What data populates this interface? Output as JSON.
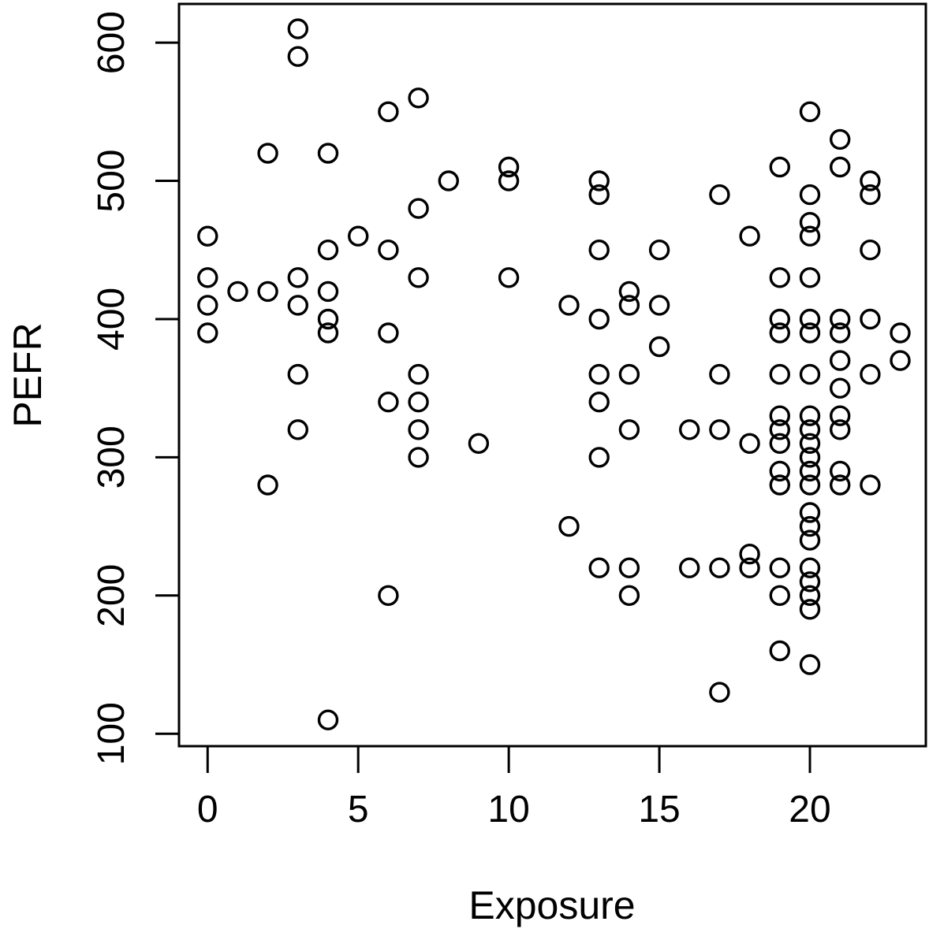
{
  "chart_data": {
    "type": "scatter",
    "title": "",
    "xlabel": "Exposure",
    "ylabel": "PEFR",
    "x_ticks": [
      0,
      5,
      10,
      15,
      20
    ],
    "y_ticks": [
      100,
      200,
      300,
      400,
      500,
      600
    ],
    "xlim": [
      -0.95,
      23.85
    ],
    "ylim": [
      91,
      628
    ],
    "grid": false,
    "legend": null,
    "marker": {
      "shape": "open-circle",
      "color": "#000000",
      "radius_px": 11.5,
      "stroke_px": 3.4
    },
    "axis_color": "#000000",
    "background_color": "#ffffff",
    "points": [
      [
        0,
        460
      ],
      [
        0,
        430
      ],
      [
        0,
        410
      ],
      [
        0,
        390
      ],
      [
        1,
        420
      ],
      [
        2,
        520
      ],
      [
        2,
        420
      ],
      [
        2,
        280
      ],
      [
        3,
        610
      ],
      [
        3,
        590
      ],
      [
        3,
        430
      ],
      [
        3,
        410
      ],
      [
        3,
        360
      ],
      [
        3,
        320
      ],
      [
        4,
        520
      ],
      [
        4,
        450
      ],
      [
        4,
        420
      ],
      [
        4,
        400
      ],
      [
        4,
        390
      ],
      [
        4,
        110
      ],
      [
        5,
        460
      ],
      [
        6,
        550
      ],
      [
        6,
        450
      ],
      [
        6,
        390
      ],
      [
        6,
        340
      ],
      [
        6,
        200
      ],
      [
        7,
        560
      ],
      [
        7,
        480
      ],
      [
        7,
        430
      ],
      [
        7,
        360
      ],
      [
        7,
        340
      ],
      [
        7,
        320
      ],
      [
        7,
        300
      ],
      [
        8,
        500
      ],
      [
        9,
        310
      ],
      [
        10,
        510
      ],
      [
        10,
        500
      ],
      [
        10,
        430
      ],
      [
        12,
        410
      ],
      [
        12,
        250
      ],
      [
        13,
        500
      ],
      [
        13,
        490
      ],
      [
        13,
        450
      ],
      [
        13,
        400
      ],
      [
        13,
        360
      ],
      [
        13,
        340
      ],
      [
        13,
        300
      ],
      [
        13,
        220
      ],
      [
        14,
        420
      ],
      [
        14,
        410
      ],
      [
        14,
        360
      ],
      [
        14,
        320
      ],
      [
        14,
        220
      ],
      [
        14,
        200
      ],
      [
        15,
        450
      ],
      [
        15,
        410
      ],
      [
        15,
        380
      ],
      [
        16,
        320
      ],
      [
        16,
        220
      ],
      [
        17,
        490
      ],
      [
        17,
        360
      ],
      [
        17,
        320
      ],
      [
        17,
        220
      ],
      [
        17,
        130
      ],
      [
        18,
        460
      ],
      [
        18,
        310
      ],
      [
        18,
        230
      ],
      [
        18,
        220
      ],
      [
        19,
        510
      ],
      [
        19,
        430
      ],
      [
        19,
        400
      ],
      [
        19,
        390
      ],
      [
        19,
        360
      ],
      [
        19,
        330
      ],
      [
        19,
        320
      ],
      [
        19,
        310
      ],
      [
        19,
        290
      ],
      [
        19,
        280
      ],
      [
        19,
        220
      ],
      [
        19,
        200
      ],
      [
        19,
        160
      ],
      [
        20,
        550
      ],
      [
        20,
        490
      ],
      [
        20,
        470
      ],
      [
        20,
        460
      ],
      [
        20,
        430
      ],
      [
        20,
        400
      ],
      [
        20,
        390
      ],
      [
        20,
        360
      ],
      [
        20,
        330
      ],
      [
        20,
        320
      ],
      [
        20,
        310
      ],
      [
        20,
        300
      ],
      [
        20,
        290
      ],
      [
        20,
        280
      ],
      [
        20,
        260
      ],
      [
        20,
        250
      ],
      [
        20,
        240
      ],
      [
        20,
        220
      ],
      [
        20,
        210
      ],
      [
        20,
        200
      ],
      [
        20,
        190
      ],
      [
        20,
        150
      ],
      [
        21,
        530
      ],
      [
        21,
        510
      ],
      [
        21,
        400
      ],
      [
        21,
        390
      ],
      [
        21,
        370
      ],
      [
        21,
        350
      ],
      [
        21,
        330
      ],
      [
        21,
        320
      ],
      [
        21,
        290
      ],
      [
        21,
        280
      ],
      [
        22,
        500
      ],
      [
        22,
        490
      ],
      [
        22,
        450
      ],
      [
        22,
        400
      ],
      [
        22,
        360
      ],
      [
        22,
        280
      ],
      [
        23,
        390
      ],
      [
        23,
        370
      ]
    ]
  }
}
